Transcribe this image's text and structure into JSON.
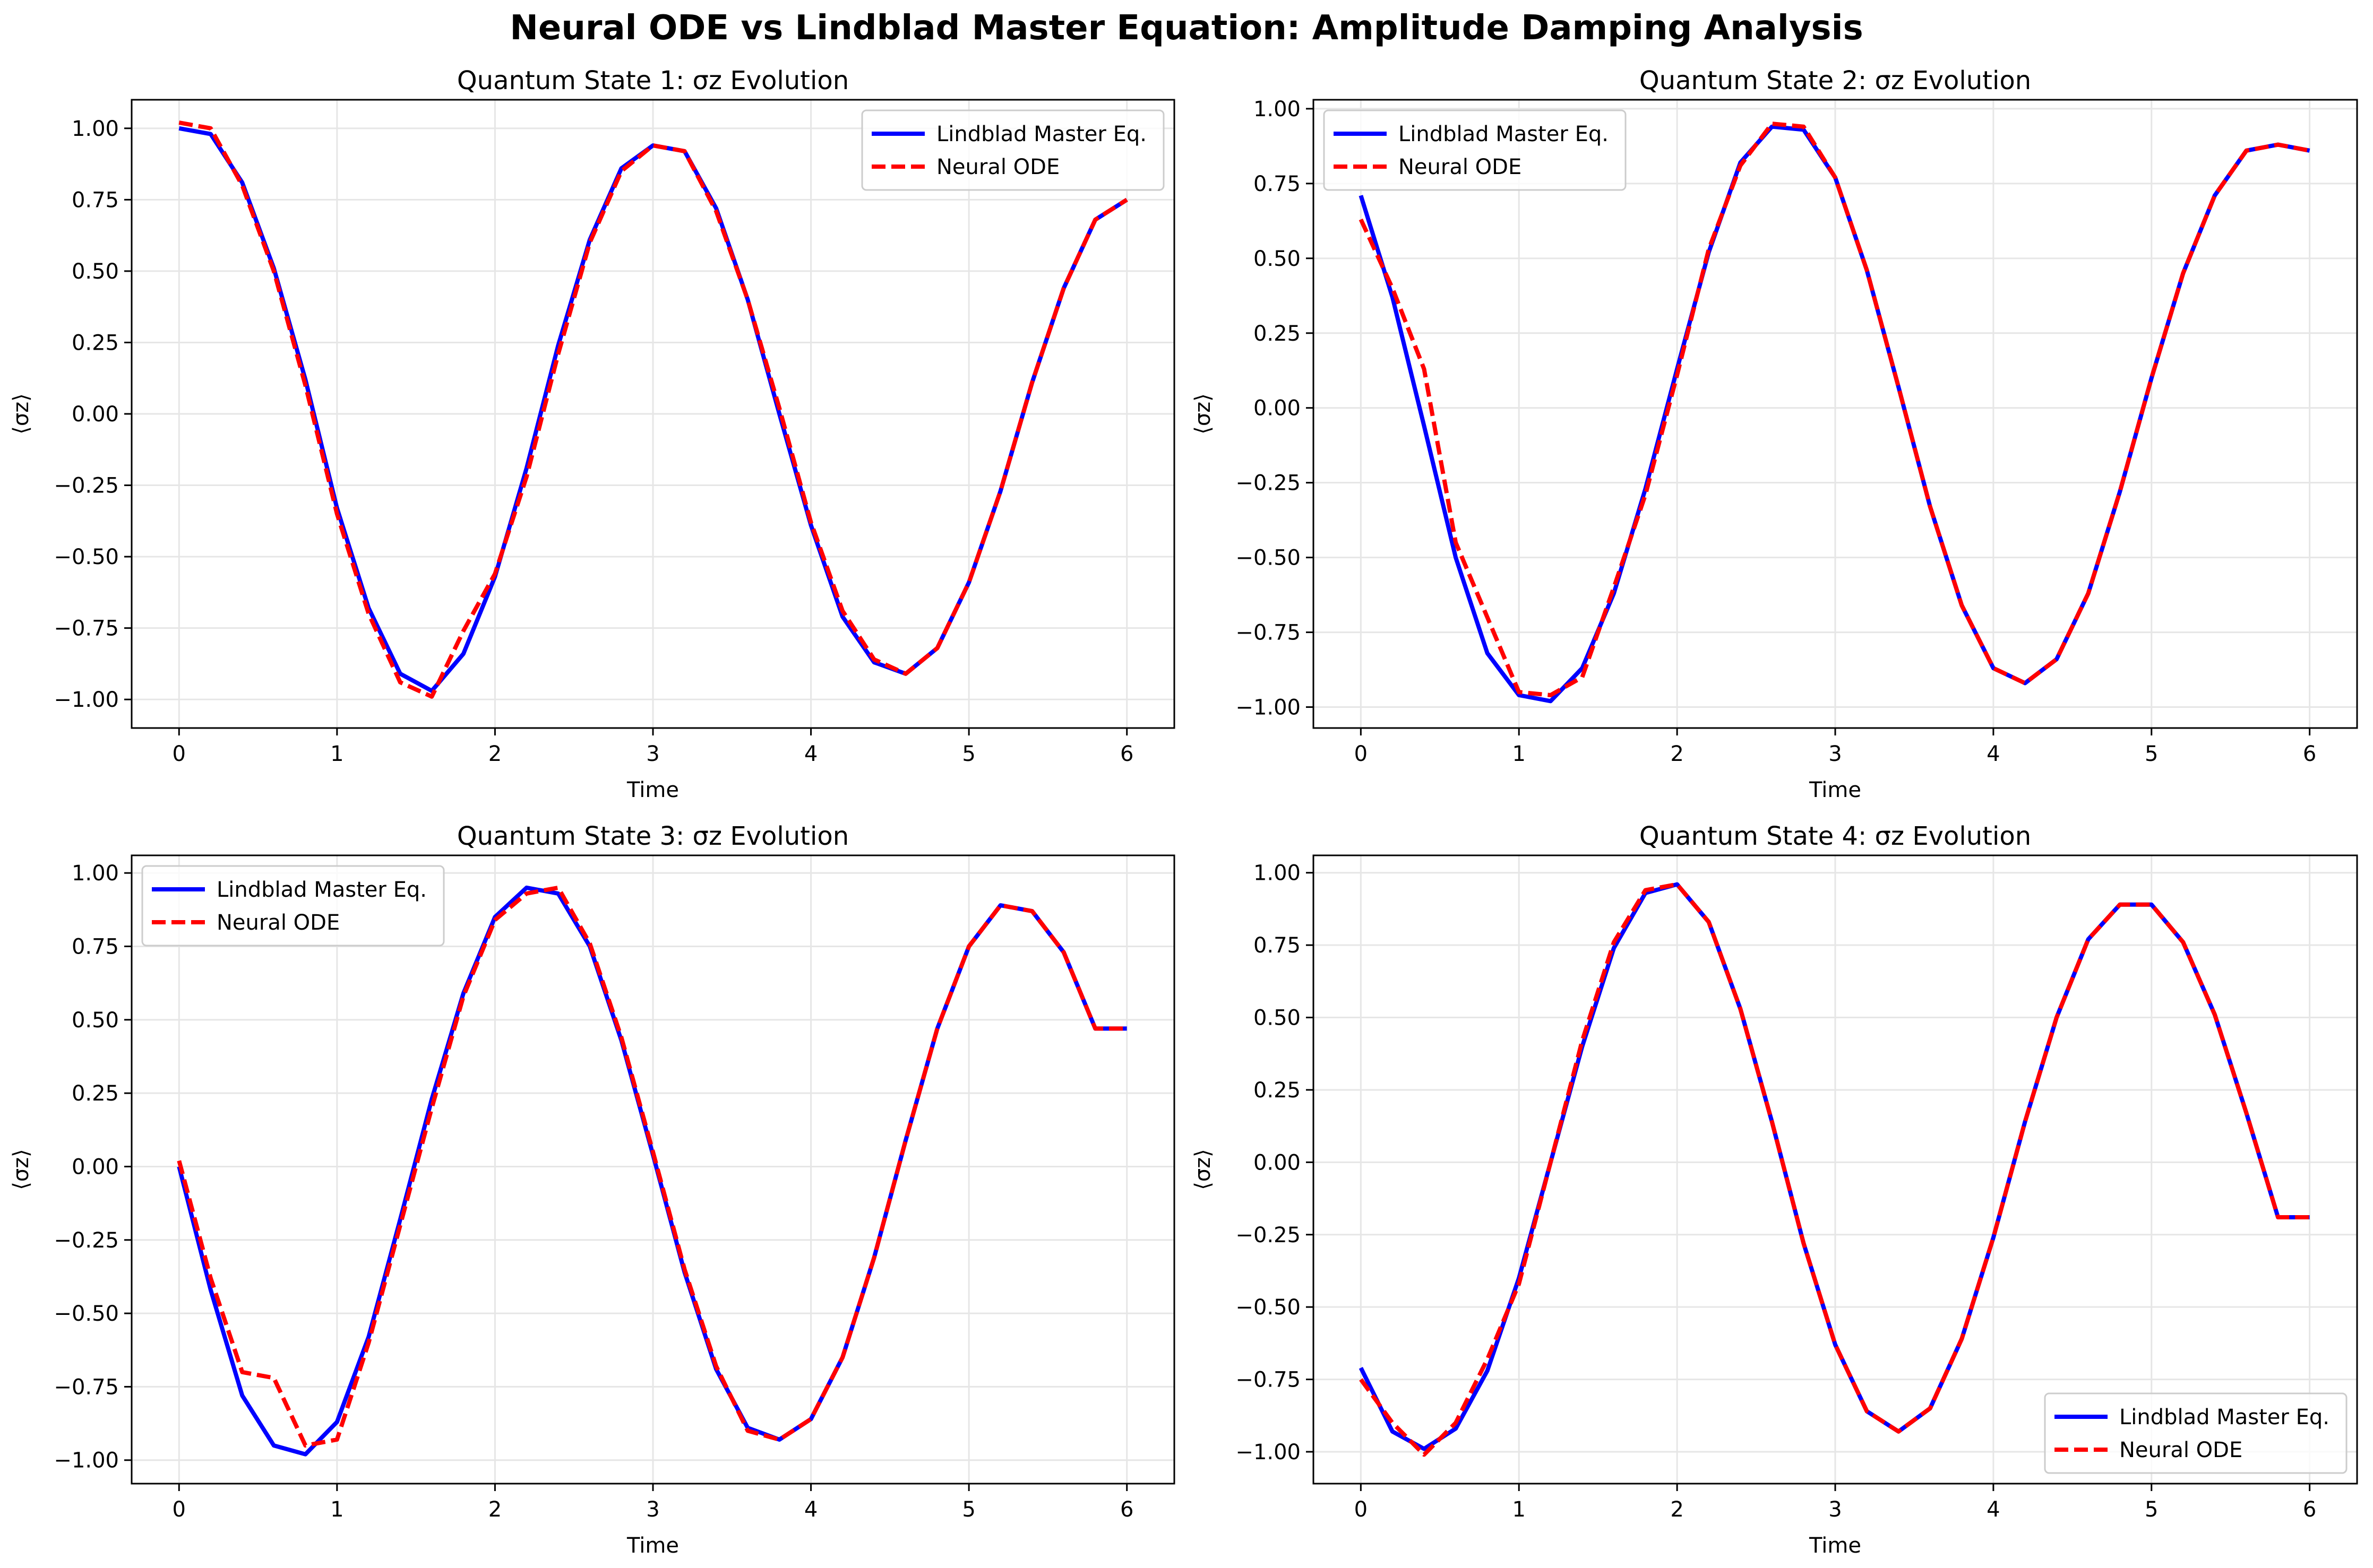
{
  "figure": {
    "title": "Neural ODE vs Lindblad Master Equation: Amplitude Damping Analysis"
  },
  "colors": {
    "lindblad": "#0000ff",
    "neural": "#ff0000",
    "grid": "#e6e6e6",
    "axes": "#000000"
  },
  "chart_data": [
    {
      "type": "line",
      "title": "Quantum State 1: σz Evolution",
      "xlabel": "Time",
      "ylabel": "⟨σz⟩",
      "xlim": [
        -0.3,
        6.3
      ],
      "ylim": [
        -1.1,
        1.1
      ],
      "xticks": [
        0,
        1,
        2,
        3,
        4,
        5,
        6
      ],
      "yticks": [
        1.0,
        0.75,
        0.5,
        0.25,
        0.0,
        -0.25,
        -0.5,
        -0.75,
        -1.0
      ],
      "ytick_labels": [
        "1.00",
        "0.75",
        "0.50",
        "0.25",
        "0.00",
        "−0.25",
        "−0.50",
        "−0.75",
        "−1.00"
      ],
      "grid": true,
      "legend": "upper right",
      "x": [
        0.0,
        0.2,
        0.4,
        0.6,
        0.8,
        1.0,
        1.2,
        1.4,
        1.6,
        1.8,
        2.0,
        2.2,
        2.4,
        2.6,
        2.8,
        3.0,
        3.2,
        3.4,
        3.6,
        3.8,
        4.0,
        4.2,
        4.4,
        4.6,
        4.8,
        5.0,
        5.2,
        5.4,
        5.6,
        5.8,
        6.0
      ],
      "series": [
        {
          "name": "Lindblad Master Eq.",
          "values": [
            1.0,
            0.98,
            0.81,
            0.51,
            0.12,
            -0.33,
            -0.68,
            -0.91,
            -0.97,
            -0.84,
            -0.57,
            -0.19,
            0.24,
            0.61,
            0.86,
            0.94,
            0.92,
            0.72,
            0.4,
            0.0,
            -0.39,
            -0.71,
            -0.87,
            -0.91,
            -0.82,
            -0.59,
            -0.27,
            0.11,
            0.44,
            0.68,
            0.75
          ]
        },
        {
          "name": "Neural ODE",
          "values": [
            1.02,
            1.0,
            0.8,
            0.5,
            0.1,
            -0.35,
            -0.7,
            -0.94,
            -0.99,
            -0.76,
            -0.56,
            -0.22,
            0.21,
            0.6,
            0.85,
            0.94,
            0.92,
            0.71,
            0.4,
            0.02,
            -0.38,
            -0.69,
            -0.86,
            -0.91,
            -0.82,
            -0.59,
            -0.27,
            0.11,
            0.44,
            0.68,
            0.75
          ]
        }
      ]
    },
    {
      "type": "line",
      "title": "Quantum State 2: σz Evolution",
      "xlabel": "Time",
      "ylabel": "⟨σz⟩",
      "xlim": [
        -0.3,
        6.3
      ],
      "ylim": [
        -1.07,
        1.03
      ],
      "xticks": [
        0,
        1,
        2,
        3,
        4,
        5,
        6
      ],
      "yticks": [
        1.0,
        0.75,
        0.5,
        0.25,
        0.0,
        -0.25,
        -0.5,
        -0.75,
        -1.0
      ],
      "ytick_labels": [
        "1.00",
        "0.75",
        "0.50",
        "0.25",
        "0.00",
        "−0.25",
        "−0.50",
        "−0.75",
        "−1.00"
      ],
      "grid": true,
      "legend": "upper left",
      "x": [
        0.0,
        0.2,
        0.4,
        0.6,
        0.8,
        1.0,
        1.2,
        1.4,
        1.6,
        1.8,
        2.0,
        2.2,
        2.4,
        2.6,
        2.8,
        3.0,
        3.2,
        3.4,
        3.6,
        3.8,
        4.0,
        4.2,
        4.4,
        4.6,
        4.8,
        5.0,
        5.2,
        5.4,
        5.6,
        5.8,
        6.0
      ],
      "series": [
        {
          "name": "Lindblad Master Eq.",
          "values": [
            0.71,
            0.37,
            -0.06,
            -0.5,
            -0.82,
            -0.96,
            -0.98,
            -0.87,
            -0.62,
            -0.27,
            0.13,
            0.52,
            0.82,
            0.94,
            0.93,
            0.77,
            0.46,
            0.07,
            -0.33,
            -0.66,
            -0.87,
            -0.92,
            -0.84,
            -0.62,
            -0.28,
            0.1,
            0.45,
            0.71,
            0.86,
            0.88,
            0.86
          ]
        },
        {
          "name": "Neural ODE",
          "values": [
            0.63,
            0.4,
            0.13,
            -0.45,
            -0.7,
            -0.95,
            -0.96,
            -0.9,
            -0.6,
            -0.29,
            0.11,
            0.53,
            0.81,
            0.95,
            0.94,
            0.77,
            0.46,
            0.07,
            -0.33,
            -0.66,
            -0.87,
            -0.92,
            -0.84,
            -0.62,
            -0.28,
            0.1,
            0.45,
            0.71,
            0.86,
            0.88,
            0.86
          ]
        }
      ]
    },
    {
      "type": "line",
      "title": "Quantum State 3: σz Evolution",
      "xlabel": "Time",
      "ylabel": "⟨σz⟩",
      "xlim": [
        -0.3,
        6.3
      ],
      "ylim": [
        -1.08,
        1.06
      ],
      "xticks": [
        0,
        1,
        2,
        3,
        4,
        5,
        6
      ],
      "yticks": [
        1.0,
        0.75,
        0.5,
        0.25,
        0.0,
        -0.25,
        -0.5,
        -0.75,
        -1.0
      ],
      "ytick_labels": [
        "1.00",
        "0.75",
        "0.50",
        "0.25",
        "0.00",
        "−0.25",
        "−0.50",
        "−0.75",
        "−1.00"
      ],
      "grid": true,
      "legend": "upper left",
      "x": [
        0.0,
        0.2,
        0.4,
        0.6,
        0.8,
        1.0,
        1.2,
        1.4,
        1.6,
        1.8,
        2.0,
        2.2,
        2.4,
        2.6,
        2.8,
        3.0,
        3.2,
        3.4,
        3.6,
        3.8,
        4.0,
        4.2,
        4.4,
        4.6,
        4.8,
        5.0,
        5.2,
        5.4,
        5.6,
        5.8,
        6.0
      ],
      "series": [
        {
          "name": "Lindblad Master Eq.",
          "values": [
            0.0,
            -0.42,
            -0.78,
            -0.95,
            -0.98,
            -0.87,
            -0.58,
            -0.18,
            0.23,
            0.59,
            0.85,
            0.95,
            0.93,
            0.75,
            0.43,
            0.04,
            -0.36,
            -0.69,
            -0.89,
            -0.93,
            -0.86,
            -0.65,
            -0.31,
            0.09,
            0.47,
            0.75,
            0.89,
            0.87,
            0.73,
            0.47,
            0.47
          ]
        },
        {
          "name": "Neural ODE",
          "values": [
            0.02,
            -0.38,
            -0.7,
            -0.72,
            -0.95,
            -0.93,
            -0.6,
            -0.2,
            0.2,
            0.58,
            0.84,
            0.93,
            0.95,
            0.76,
            0.44,
            0.05,
            -0.35,
            -0.68,
            -0.9,
            -0.93,
            -0.86,
            -0.65,
            -0.31,
            0.09,
            0.47,
            0.75,
            0.89,
            0.87,
            0.73,
            0.47,
            0.47
          ]
        }
      ]
    },
    {
      "type": "line",
      "title": "Quantum State 4: σz Evolution",
      "xlabel": "Time",
      "ylabel": "⟨σz⟩",
      "xlim": [
        -0.3,
        6.3
      ],
      "ylim": [
        -1.11,
        1.06
      ],
      "xticks": [
        0,
        1,
        2,
        3,
        4,
        5,
        6
      ],
      "yticks": [
        1.0,
        0.75,
        0.5,
        0.25,
        0.0,
        -0.25,
        -0.5,
        -0.75,
        -1.0
      ],
      "ytick_labels": [
        "1.00",
        "0.75",
        "0.50",
        "0.25",
        "0.00",
        "−0.25",
        "−0.50",
        "−0.75",
        "−1.00"
      ],
      "grid": true,
      "legend": "lower right",
      "x": [
        0.0,
        0.2,
        0.4,
        0.6,
        0.8,
        1.0,
        1.2,
        1.4,
        1.6,
        1.8,
        2.0,
        2.2,
        2.4,
        2.6,
        2.8,
        3.0,
        3.2,
        3.4,
        3.6,
        3.8,
        4.0,
        4.2,
        4.4,
        4.6,
        4.8,
        5.0,
        5.2,
        5.4,
        5.6,
        5.8,
        6.0
      ],
      "series": [
        {
          "name": "Lindblad Master Eq.",
          "values": [
            -0.71,
            -0.93,
            -0.99,
            -0.92,
            -0.72,
            -0.4,
            0.0,
            0.4,
            0.74,
            0.93,
            0.96,
            0.83,
            0.53,
            0.14,
            -0.28,
            -0.63,
            -0.86,
            -0.93,
            -0.85,
            -0.61,
            -0.26,
            0.14,
            0.5,
            0.77,
            0.89,
            0.89,
            0.76,
            0.51,
            0.17,
            -0.19,
            -0.19
          ]
        },
        {
          "name": "Neural ODE",
          "values": [
            -0.75,
            -0.9,
            -1.01,
            -0.9,
            -0.68,
            -0.42,
            0.0,
            0.42,
            0.76,
            0.94,
            0.96,
            0.83,
            0.53,
            0.14,
            -0.28,
            -0.63,
            -0.86,
            -0.93,
            -0.85,
            -0.61,
            -0.26,
            0.14,
            0.5,
            0.77,
            0.89,
            0.89,
            0.76,
            0.51,
            0.17,
            -0.19,
            -0.19
          ]
        }
      ]
    }
  ]
}
